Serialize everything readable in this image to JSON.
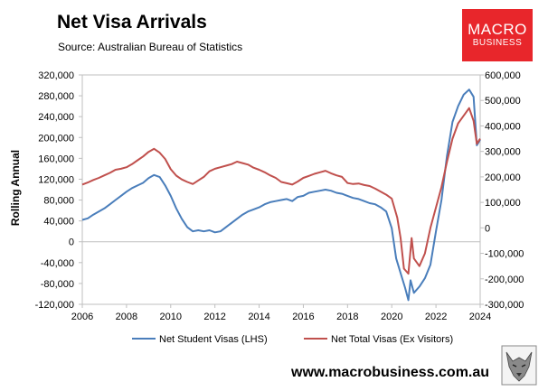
{
  "header": {
    "title": "Net Visa Arrivals",
    "source": "Source: Australian Bureau of Statistics"
  },
  "logo": {
    "line1": "MACRO",
    "line2": "BUSINESS",
    "color": "#e8262b"
  },
  "footer": {
    "website": "www.macrobusiness.com.au"
  },
  "chart_data": {
    "type": "line",
    "ylabel": "Rolling Annual",
    "x_ticks": [
      "2006",
      "2008",
      "2010",
      "2012",
      "2014",
      "2016",
      "2018",
      "2020",
      "2022",
      "2024"
    ],
    "xlim": [
      2006,
      2024
    ],
    "y_left": {
      "lim": [
        -120000,
        320000
      ],
      "ticks": [
        "-120,000",
        "-80,000",
        "-40,000",
        "0",
        "40,000",
        "80,000",
        "120,000",
        "160,000",
        "200,000",
        "240,000",
        "280,000",
        "320,000"
      ]
    },
    "y_right": {
      "lim": [
        -300000,
        600000
      ],
      "ticks": [
        "-300,000",
        "-200,000",
        "-100,000",
        "0",
        "100,000",
        "200,000",
        "300,000",
        "400,000",
        "500,000",
        "600,000"
      ]
    },
    "grid": false,
    "legend_position": "bottom",
    "series": [
      {
        "name": "Net Student Visas (LHS)",
        "axis": "left",
        "color": "#4a7ebb",
        "points": [
          [
            2006.0,
            42000
          ],
          [
            2006.25,
            45000
          ],
          [
            2006.5,
            52000
          ],
          [
            2006.75,
            58000
          ],
          [
            2007.0,
            64000
          ],
          [
            2007.25,
            72000
          ],
          [
            2007.5,
            80000
          ],
          [
            2007.75,
            88000
          ],
          [
            2008.0,
            96000
          ],
          [
            2008.25,
            103000
          ],
          [
            2008.5,
            108000
          ],
          [
            2008.75,
            113000
          ],
          [
            2009.0,
            122000
          ],
          [
            2009.25,
            128000
          ],
          [
            2009.5,
            124000
          ],
          [
            2009.75,
            108000
          ],
          [
            2010.0,
            88000
          ],
          [
            2010.25,
            64000
          ],
          [
            2010.5,
            44000
          ],
          [
            2010.75,
            28000
          ],
          [
            2011.0,
            20000
          ],
          [
            2011.25,
            22000
          ],
          [
            2011.5,
            20000
          ],
          [
            2011.75,
            22000
          ],
          [
            2012.0,
            18000
          ],
          [
            2012.25,
            20000
          ],
          [
            2012.5,
            28000
          ],
          [
            2012.75,
            36000
          ],
          [
            2013.0,
            44000
          ],
          [
            2013.25,
            52000
          ],
          [
            2013.5,
            58000
          ],
          [
            2013.75,
            62000
          ],
          [
            2014.0,
            66000
          ],
          [
            2014.25,
            72000
          ],
          [
            2014.5,
            76000
          ],
          [
            2014.75,
            78000
          ],
          [
            2015.0,
            80000
          ],
          [
            2015.25,
            82000
          ],
          [
            2015.5,
            78000
          ],
          [
            2015.75,
            86000
          ],
          [
            2016.0,
            88000
          ],
          [
            2016.25,
            94000
          ],
          [
            2016.5,
            96000
          ],
          [
            2016.75,
            98000
          ],
          [
            2017.0,
            100000
          ],
          [
            2017.25,
            98000
          ],
          [
            2017.5,
            94000
          ],
          [
            2017.75,
            92000
          ],
          [
            2018.0,
            88000
          ],
          [
            2018.25,
            84000
          ],
          [
            2018.5,
            82000
          ],
          [
            2018.75,
            78000
          ],
          [
            2019.0,
            74000
          ],
          [
            2019.25,
            72000
          ],
          [
            2019.5,
            66000
          ],
          [
            2019.75,
            58000
          ],
          [
            2020.0,
            26000
          ],
          [
            2020.2,
            -32000
          ],
          [
            2020.4,
            -60000
          ],
          [
            2020.6,
            -88000
          ],
          [
            2020.75,
            -112000
          ],
          [
            2020.85,
            -74000
          ],
          [
            2021.0,
            -98000
          ],
          [
            2021.25,
            -86000
          ],
          [
            2021.5,
            -70000
          ],
          [
            2021.75,
            -44000
          ],
          [
            2022.0,
            20000
          ],
          [
            2022.25,
            80000
          ],
          [
            2022.5,
            165000
          ],
          [
            2022.75,
            230000
          ],
          [
            2023.0,
            260000
          ],
          [
            2023.25,
            282000
          ],
          [
            2023.5,
            292000
          ],
          [
            2023.7,
            278000
          ],
          [
            2023.85,
            185000
          ],
          [
            2024.0,
            196000
          ]
        ]
      },
      {
        "name": "Net Total Visas (Ex Visitors)",
        "axis": "right",
        "color": "#c0504d",
        "points": [
          [
            2006.0,
            170000
          ],
          [
            2006.25,
            178000
          ],
          [
            2006.5,
            188000
          ],
          [
            2006.75,
            196000
          ],
          [
            2007.0,
            206000
          ],
          [
            2007.25,
            216000
          ],
          [
            2007.5,
            228000
          ],
          [
            2007.75,
            232000
          ],
          [
            2008.0,
            238000
          ],
          [
            2008.25,
            250000
          ],
          [
            2008.5,
            265000
          ],
          [
            2008.75,
            280000
          ],
          [
            2009.0,
            298000
          ],
          [
            2009.25,
            310000
          ],
          [
            2009.5,
            295000
          ],
          [
            2009.75,
            270000
          ],
          [
            2010.0,
            230000
          ],
          [
            2010.25,
            205000
          ],
          [
            2010.5,
            190000
          ],
          [
            2010.75,
            180000
          ],
          [
            2011.0,
            172000
          ],
          [
            2011.25,
            186000
          ],
          [
            2011.5,
            200000
          ],
          [
            2011.75,
            222000
          ],
          [
            2012.0,
            232000
          ],
          [
            2012.25,
            238000
          ],
          [
            2012.5,
            244000
          ],
          [
            2012.75,
            250000
          ],
          [
            2013.0,
            260000
          ],
          [
            2013.25,
            254000
          ],
          [
            2013.5,
            248000
          ],
          [
            2013.75,
            236000
          ],
          [
            2014.0,
            228000
          ],
          [
            2014.25,
            218000
          ],
          [
            2014.5,
            206000
          ],
          [
            2014.75,
            196000
          ],
          [
            2015.0,
            180000
          ],
          [
            2015.25,
            175000
          ],
          [
            2015.5,
            170000
          ],
          [
            2015.75,
            182000
          ],
          [
            2016.0,
            196000
          ],
          [
            2016.25,
            204000
          ],
          [
            2016.5,
            212000
          ],
          [
            2016.75,
            218000
          ],
          [
            2017.0,
            224000
          ],
          [
            2017.25,
            214000
          ],
          [
            2017.5,
            206000
          ],
          [
            2017.75,
            200000
          ],
          [
            2018.0,
            176000
          ],
          [
            2018.25,
            172000
          ],
          [
            2018.5,
            174000
          ],
          [
            2018.75,
            168000
          ],
          [
            2019.0,
            164000
          ],
          [
            2019.25,
            154000
          ],
          [
            2019.5,
            142000
          ],
          [
            2019.75,
            130000
          ],
          [
            2020.0,
            115000
          ],
          [
            2020.25,
            40000
          ],
          [
            2020.4,
            -40000
          ],
          [
            2020.55,
            -160000
          ],
          [
            2020.75,
            -180000
          ],
          [
            2020.9,
            -40000
          ],
          [
            2021.0,
            -120000
          ],
          [
            2021.25,
            -150000
          ],
          [
            2021.5,
            -100000
          ],
          [
            2021.75,
            0
          ],
          [
            2022.0,
            80000
          ],
          [
            2022.25,
            160000
          ],
          [
            2022.5,
            260000
          ],
          [
            2022.75,
            350000
          ],
          [
            2023.0,
            410000
          ],
          [
            2023.25,
            440000
          ],
          [
            2023.5,
            470000
          ],
          [
            2023.7,
            420000
          ],
          [
            2023.85,
            330000
          ],
          [
            2024.0,
            350000
          ]
        ]
      }
    ]
  }
}
